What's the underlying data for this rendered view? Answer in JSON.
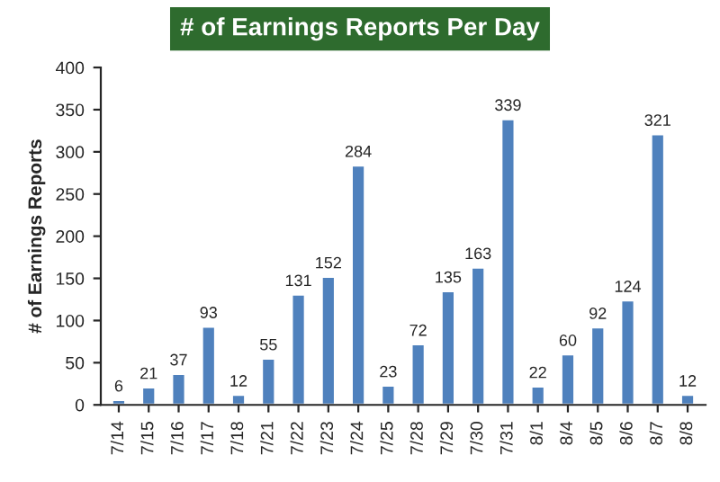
{
  "chart_data": {
    "type": "bar",
    "title": "# of Earnings Reports Per Day",
    "ylabel": "# of Earnings Reports",
    "categories": [
      "7/14",
      "7/15",
      "7/16",
      "7/17",
      "7/18",
      "7/21",
      "7/22",
      "7/23",
      "7/24",
      "7/25",
      "7/28",
      "7/29",
      "7/30",
      "7/31",
      "8/1",
      "8/4",
      "8/5",
      "8/6",
      "8/7",
      "8/8"
    ],
    "values": [
      6,
      21,
      37,
      93,
      12,
      55,
      131,
      152,
      284,
      23,
      72,
      135,
      163,
      339,
      22,
      60,
      92,
      124,
      321,
      12
    ],
    "color": "#4f81bd",
    "ylim": [
      0,
      400
    ],
    "yticks": [
      0,
      50,
      100,
      150,
      200,
      250,
      300,
      350,
      400
    ],
    "data_labels": true,
    "grid": false
  }
}
